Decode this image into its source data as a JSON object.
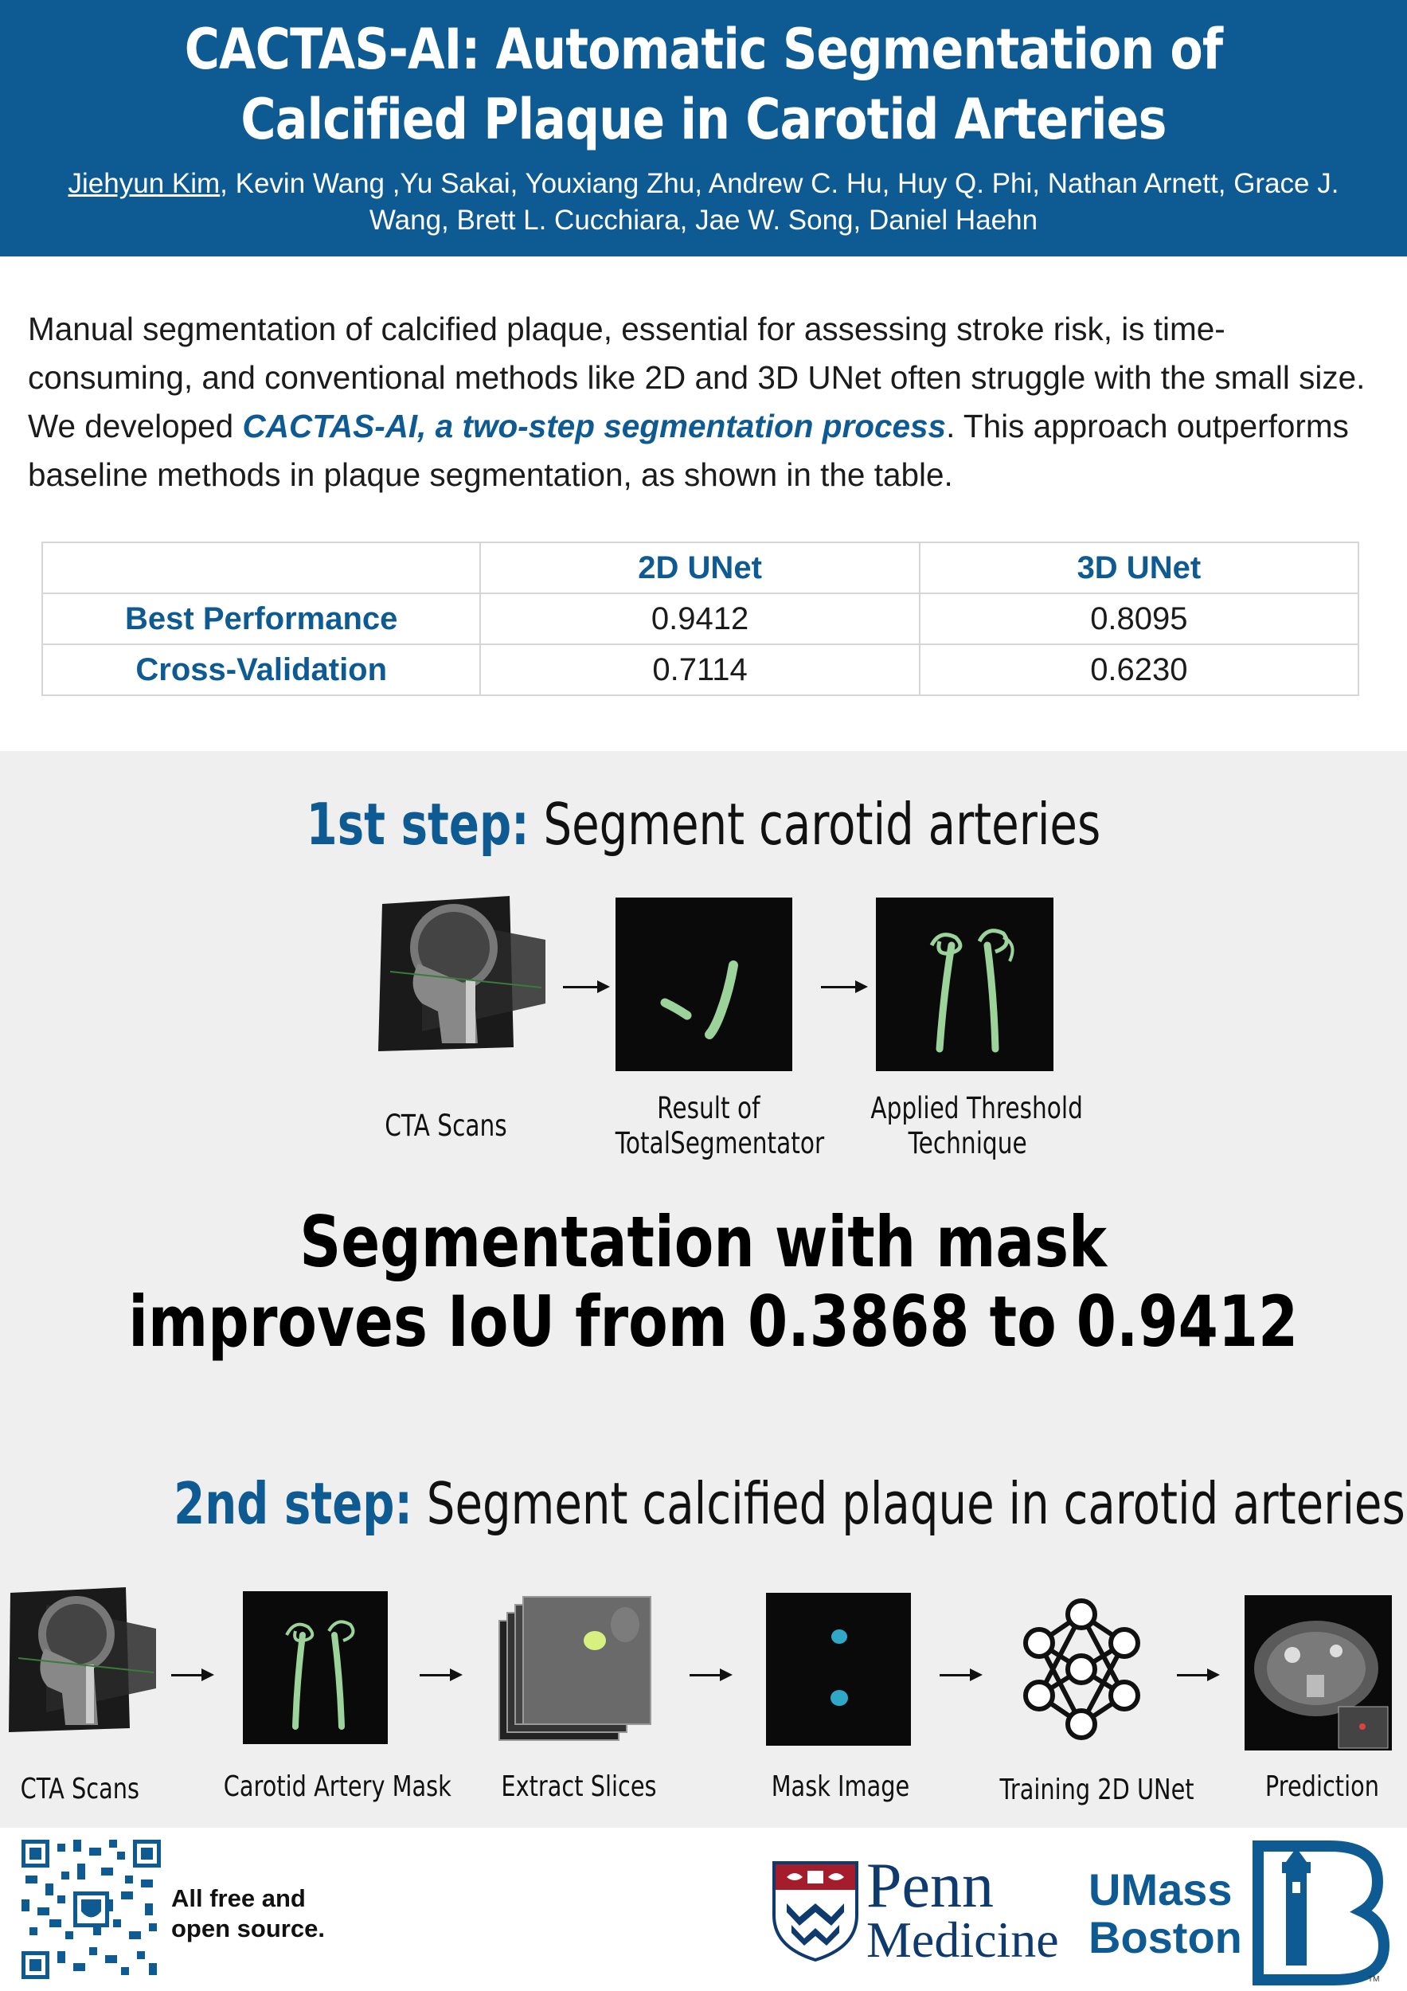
{
  "header": {
    "title_line1": "CACTAS-AI: Automatic Segmentation of",
    "title_line2": "Calcified Plaque in Carotid Arteries",
    "first_author": "Jiehyun Kim",
    "authors_line1_rest": ", Kevin Wang ,Yu Sakai, Youxiang Zhu, Andrew C. Hu, Huy Q. Phi, Nathan Arnett, Grace J.",
    "authors_line2": "Wang, Brett L. Cucchiara, Jae W. Song, Daniel Haehn"
  },
  "abstract": {
    "text_before": "Manual segmentation of calcified plaque, essential for assessing stroke risk, is time-consuming, and conventional methods like 2D and 3D UNet often struggle with the small size. We developed ",
    "highlight": "CACTAS-AI, a two-step segmentation process",
    "text_after": ". This approach outperforms baseline methods in plaque segmentation, as shown in the table."
  },
  "table": {
    "columns": [
      "",
      "2D UNet",
      "3D UNet"
    ],
    "rows": [
      {
        "label": "Best Performance",
        "values": [
          "0.9412",
          "0.8095"
        ]
      },
      {
        "label": "Cross-Validation",
        "values": [
          "0.7114",
          "0.6230"
        ]
      }
    ]
  },
  "step1": {
    "lead": "1st step:",
    "rest": " Segment carotid arteries",
    "captions": [
      {
        "line1": "CTA Scans",
        "line2": ""
      },
      {
        "line1": "Result of",
        "line2": "TotalSegmentator"
      },
      {
        "line1": "Applied Threshold",
        "line2": "Technique"
      }
    ]
  },
  "headline": {
    "line1": "Segmentation with mask",
    "line2": "improves IoU from 0.3868 to 0.9412"
  },
  "step2": {
    "lead": "2nd step:",
    "rest": " Segment calcified plaque in carotid arteries",
    "captions": [
      "CTA Scans",
      "Carotid Artery Mask",
      "Extract Slices",
      "Mask Image",
      "Training 2D UNet",
      "Prediction"
    ]
  },
  "footer": {
    "oss_line1": "All free and",
    "oss_line2": "open source.",
    "penn_line1": "Penn",
    "penn_line2": "Medicine",
    "umass_line1": "UMass",
    "umass_line2": "Boston",
    "tm": "TM"
  },
  "colors": {
    "brand_blue": "#0e5a93",
    "panel_gray": "#efefef"
  }
}
